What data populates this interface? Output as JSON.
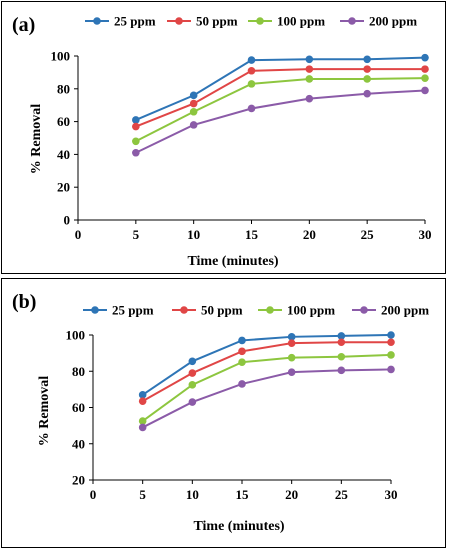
{
  "chart_data": [
    {
      "type": "line",
      "panel_label": "(a)",
      "x": [
        5,
        10,
        15,
        20,
        25,
        30
      ],
      "xlabel": "Time (minutes)",
      "ylabel": "% Removal",
      "xlim": [
        0,
        30
      ],
      "ylim": [
        0,
        100
      ],
      "xticks": [
        0,
        5,
        10,
        15,
        20,
        25,
        30
      ],
      "yticks": [
        0,
        20,
        40,
        60,
        80,
        100
      ],
      "grid": false,
      "legend_position": "top",
      "series": [
        {
          "name": "25 ppm",
          "color": "#2E75B6",
          "values": [
            61,
            76,
            97.5,
            98,
            98,
            99
          ]
        },
        {
          "name": "50 ppm",
          "color": "#E04646",
          "values": [
            57,
            71,
            91,
            92,
            92,
            92
          ]
        },
        {
          "name": "100 ppm",
          "color": "#8DC63F",
          "values": [
            48,
            66,
            83,
            86,
            86,
            86.5
          ]
        },
        {
          "name": "200 ppm",
          "color": "#8B5BA8",
          "values": [
            41,
            58,
            68,
            74,
            77,
            79
          ]
        }
      ]
    },
    {
      "type": "line",
      "panel_label": "(b)",
      "x": [
        5,
        10,
        15,
        20,
        25,
        30
      ],
      "xlabel": "Time (minutes)",
      "ylabel": "% Removal",
      "xlim": [
        0,
        30
      ],
      "ylim": [
        20,
        100
      ],
      "xticks": [
        0,
        5,
        10,
        15,
        20,
        25,
        30
      ],
      "yticks": [
        20,
        40,
        60,
        80,
        100
      ],
      "grid": false,
      "legend_position": "top",
      "series": [
        {
          "name": "25 ppm",
          "color": "#2E75B6",
          "values": [
            67,
            85.5,
            97,
            99,
            99.5,
            100
          ]
        },
        {
          "name": "50 ppm",
          "color": "#E04646",
          "values": [
            63.5,
            79,
            91,
            95.5,
            96,
            96
          ]
        },
        {
          "name": "100 ppm",
          "color": "#8DC63F",
          "values": [
            52.5,
            72.5,
            85,
            87.5,
            88,
            89
          ]
        },
        {
          "name": "200 ppm",
          "color": "#8B5BA8",
          "values": [
            49,
            63,
            73,
            79.5,
            80.5,
            81
          ]
        }
      ]
    }
  ]
}
